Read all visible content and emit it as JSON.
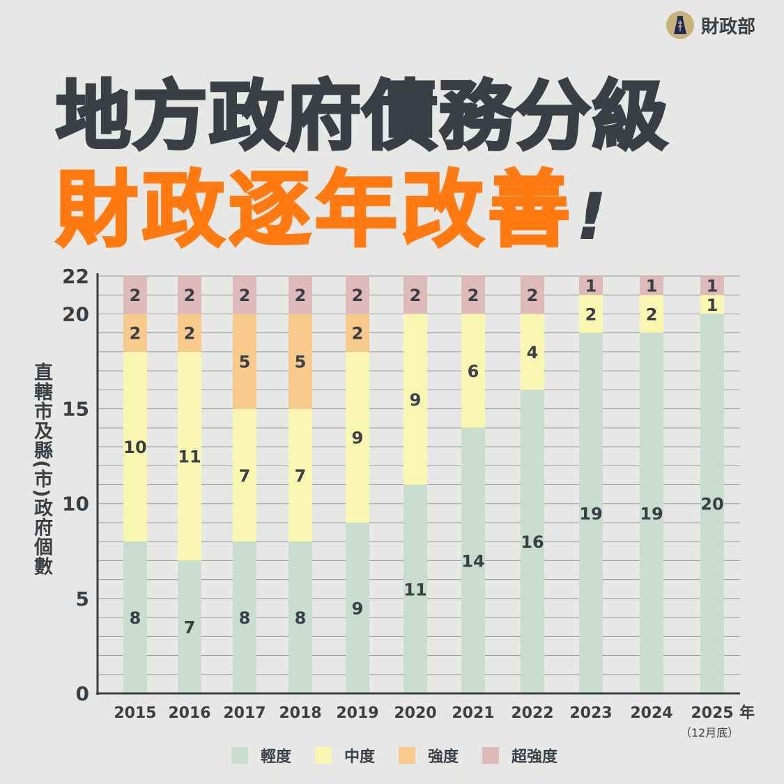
{
  "logo": {
    "text": "財政部"
  },
  "title": {
    "line1": "地方政府債務分級",
    "line2": "財政逐年改善",
    "exclaim": "!"
  },
  "chart_data": {
    "type": "bar",
    "stacked": true,
    "categories": [
      "2015",
      "2016",
      "2017",
      "2018",
      "2019",
      "2020",
      "2021",
      "2022",
      "2023",
      "2024",
      "2025"
    ],
    "x_unit": "年",
    "last_category_note": "（12月底）",
    "ylabel": "直轄市及縣(市)政府個數",
    "ylim": [
      0,
      22
    ],
    "yticks": [
      0,
      5,
      10,
      15,
      20,
      22
    ],
    "grid": true,
    "legend_position": "bottom",
    "series": [
      {
        "name": "輕度",
        "color": "#c8ddcf",
        "values": [
          8,
          7,
          8,
          8,
          9,
          11,
          14,
          16,
          19,
          19,
          20
        ]
      },
      {
        "name": "中度",
        "color": "#f8f6b0",
        "values": [
          10,
          11,
          7,
          7,
          9,
          9,
          6,
          4,
          2,
          2,
          1
        ]
      },
      {
        "name": "強度",
        "color": "#f7c98b",
        "values": [
          2,
          2,
          5,
          5,
          2,
          0,
          0,
          0,
          0,
          0,
          0
        ]
      },
      {
        "name": "超強度",
        "color": "#dfbaba",
        "values": [
          2,
          2,
          2,
          2,
          2,
          2,
          2,
          2,
          1,
          1,
          1
        ]
      }
    ]
  }
}
